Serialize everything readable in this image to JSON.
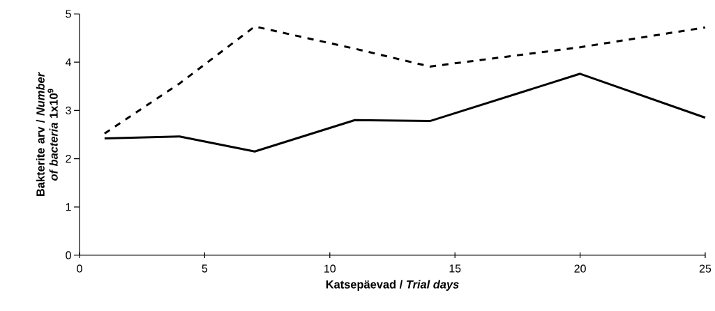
{
  "chart_data": {
    "type": "line",
    "xlabel": "Katsepäevad / *Trial days*",
    "ylabel": "Bakterite arv / *Number of bacteria* 1x10$^{9}$",
    "x": [
      1,
      4,
      7,
      11,
      14,
      20,
      25
    ],
    "series": [
      {
        "color": "#000000",
        "line_style": "solid",
        "values": [
          2.42,
          2.46,
          2.15,
          2.8,
          2.78,
          3.76,
          2.85
        ]
      },
      {
        "color": "#000000",
        "line_style": "dashed",
        "values": [
          2.52,
          3.56,
          4.74,
          4.28,
          3.91,
          4.31,
          4.72
        ]
      }
    ],
    "xlim": [
      0,
      25
    ],
    "ylim": [
      0,
      5
    ],
    "xticks": [
      0,
      5,
      10,
      15,
      20,
      25
    ],
    "yticks": [
      0,
      1,
      2,
      3,
      4,
      5
    ],
    "grid": false,
    "marker": "none"
  }
}
